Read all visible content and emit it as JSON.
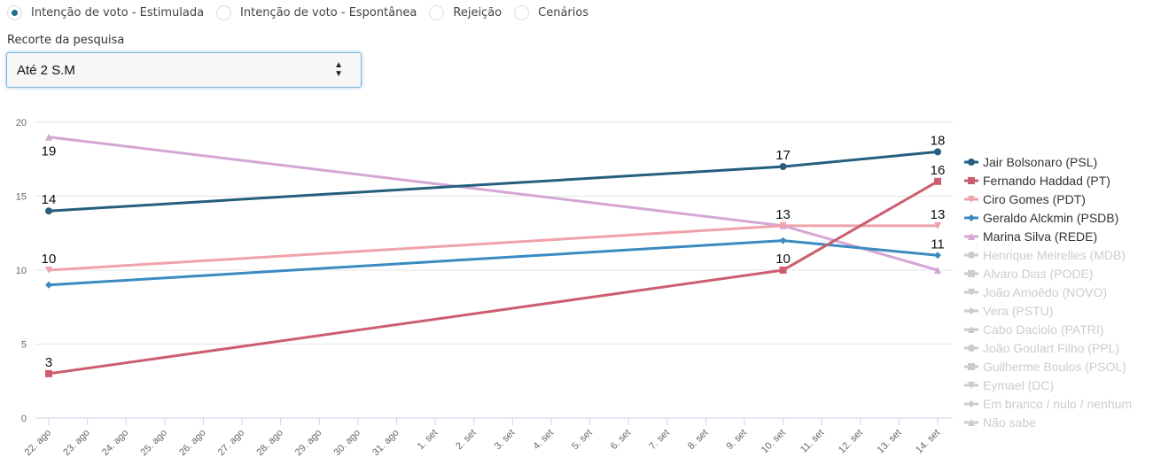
{
  "tabs": [
    {
      "label": "Intenção de voto - Estimulada",
      "checked": true
    },
    {
      "label": "Intenção de voto - Espontânea",
      "checked": false
    },
    {
      "label": "Rejeição",
      "checked": false
    },
    {
      "label": "Cenários",
      "checked": false
    }
  ],
  "filter": {
    "label": "Recorte da pesquisa",
    "selected": "Até 2 S.M"
  },
  "chart_data": {
    "type": "line",
    "title": "",
    "xlabel": "",
    "ylabel": "",
    "ylim": [
      0,
      20
    ],
    "yticks": [
      0,
      5,
      10,
      15,
      20
    ],
    "grid": true,
    "legend_position": "right",
    "x_categories": [
      "22. ago",
      "23. ago",
      "24. ago",
      "25. ago",
      "26. ago",
      "27. ago",
      "28. ago",
      "29. ago",
      "30. ago",
      "31. ago",
      "1. set",
      "2. set",
      "3. set",
      "4. set",
      "5. set",
      "6. set",
      "7. set",
      "8. set",
      "9. set",
      "10. set",
      "11. set",
      "12. set",
      "13. set",
      "14. set"
    ],
    "series": [
      {
        "name": "Jair Bolsonaro (PSL)",
        "color": "#255e7e",
        "marker": "circle",
        "visible": true,
        "points": [
          {
            "x": "22. ago",
            "y": 14
          },
          {
            "x": "10. set",
            "y": 17
          },
          {
            "x": "14. set",
            "y": 18
          }
        ]
      },
      {
        "name": "Fernando Haddad (PT)",
        "color": "#cc5e6f",
        "marker": "square",
        "visible": true,
        "points": [
          {
            "x": "22. ago",
            "y": 3
          },
          {
            "x": "10. set",
            "y": 10
          },
          {
            "x": "14. set",
            "y": 16
          }
        ]
      },
      {
        "name": "Ciro Gomes (PDT)",
        "color": "#f0a2aa",
        "marker": "triangle-down",
        "visible": true,
        "points": [
          {
            "x": "22. ago",
            "y": 10
          },
          {
            "x": "10. set",
            "y": 13
          },
          {
            "x": "14. set",
            "y": 13
          }
        ]
      },
      {
        "name": "Geraldo Alckmin (PSDB)",
        "color": "#3b8bc2",
        "marker": "diamond",
        "visible": true,
        "points": [
          {
            "x": "22. ago",
            "y": 9
          },
          {
            "x": "10. set",
            "y": 12
          },
          {
            "x": "14. set",
            "y": 11
          }
        ]
      },
      {
        "name": "Marina Silva (REDE)",
        "color": "#d4a6d4",
        "marker": "triangle",
        "visible": true,
        "points": [
          {
            "x": "22. ago",
            "y": 19
          },
          {
            "x": "10. set",
            "y": 13
          },
          {
            "x": "14. set",
            "y": 10
          }
        ]
      },
      {
        "name": "Henrique Meirelles (MDB)",
        "color": "#cccccc",
        "marker": "circle",
        "visible": false,
        "points": []
      },
      {
        "name": "Alvaro Dias (PODE)",
        "color": "#cccccc",
        "marker": "square",
        "visible": false,
        "points": []
      },
      {
        "name": "João Amoêdo (NOVO)",
        "color": "#cccccc",
        "marker": "triangle-down",
        "visible": false,
        "points": []
      },
      {
        "name": "Vera (PSTU)",
        "color": "#cccccc",
        "marker": "diamond",
        "visible": false,
        "points": []
      },
      {
        "name": "Cabo Daciolo (PATRI)",
        "color": "#cccccc",
        "marker": "triangle",
        "visible": false,
        "points": []
      },
      {
        "name": "João Goulart Filho (PPL)",
        "color": "#cccccc",
        "marker": "circle",
        "visible": false,
        "points": []
      },
      {
        "name": "Guilherme Boulos (PSOL)",
        "color": "#cccccc",
        "marker": "square",
        "visible": false,
        "points": []
      },
      {
        "name": "Eymael (DC)",
        "color": "#cccccc",
        "marker": "triangle-down",
        "visible": false,
        "points": []
      },
      {
        "name": "Em branco / nulo / nenhum",
        "color": "#cccccc",
        "marker": "diamond",
        "visible": false,
        "points": []
      },
      {
        "name": "Não sabe",
        "color": "#cccccc",
        "marker": "triangle",
        "visible": false,
        "points": []
      }
    ],
    "data_labels": [
      {
        "series": "Marina Silva (REDE)",
        "x": "22. ago",
        "text": "19",
        "position": "below"
      },
      {
        "series": "Jair Bolsonaro (PSL)",
        "x": "22. ago",
        "text": "14",
        "position": "above"
      },
      {
        "series": "Ciro Gomes (PDT)",
        "x": "22. ago",
        "text": "10",
        "position": "above"
      },
      {
        "series": "Fernando Haddad (PT)",
        "x": "22. ago",
        "text": "3",
        "position": "above"
      },
      {
        "series": "Jair Bolsonaro (PSL)",
        "x": "10. set",
        "text": "17",
        "position": "above"
      },
      {
        "series": "Ciro Gomes (PDT)",
        "x": "10. set",
        "text": "13",
        "position": "above"
      },
      {
        "series": "Fernando Haddad (PT)",
        "x": "10. set",
        "text": "10",
        "position": "above"
      },
      {
        "series": "Jair Bolsonaro (PSL)",
        "x": "14. set",
        "text": "18",
        "position": "above"
      },
      {
        "series": "Fernando Haddad (PT)",
        "x": "14. set",
        "text": "16",
        "position": "above"
      },
      {
        "series": "Ciro Gomes (PDT)",
        "x": "14. set",
        "text": "13",
        "position": "above"
      },
      {
        "series": "Geraldo Alckmin (PSDB)",
        "x": "14. set",
        "text": "11",
        "position": "above"
      }
    ]
  }
}
